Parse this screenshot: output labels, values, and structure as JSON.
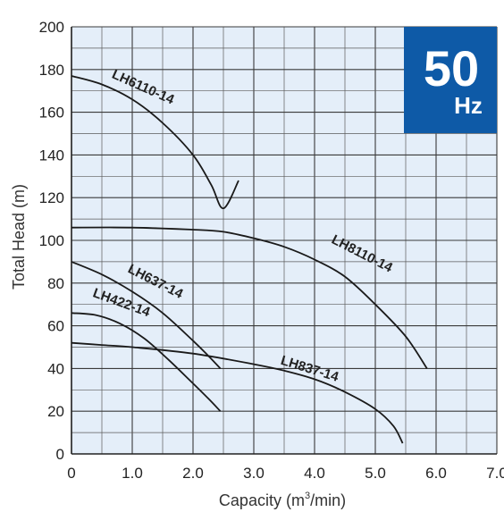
{
  "chart_data": {
    "type": "line",
    "ylabel": "Total Head (m)",
    "xlabel_prefix": "Capacity (m",
    "xlabel_sup": "3",
    "xlabel_suffix": "/min)",
    "xlim": [
      0,
      7
    ],
    "ylim": [
      0,
      200
    ],
    "x_ticks": [
      "0",
      "1.0",
      "2.0",
      "3.0",
      "4.0",
      "5.0",
      "6.0",
      "7.0"
    ],
    "y_ticks": [
      "0",
      "20",
      "40",
      "60",
      "80",
      "100",
      "120",
      "140",
      "160",
      "180",
      "200"
    ],
    "grid": true,
    "badge": {
      "big": "50",
      "small": "Hz",
      "color": "#0e5aa7"
    },
    "background_color": "#e4eef9",
    "series": [
      {
        "name": "LH6110-14",
        "x": [
          0,
          0.5,
          1.0,
          1.5,
          2.0,
          2.3,
          2.5,
          2.75
        ],
        "y": [
          177,
          173,
          166,
          155,
          140,
          126,
          115,
          128
        ]
      },
      {
        "name": "LH8110-14",
        "x": [
          0,
          1.0,
          2.0,
          2.5,
          3.0,
          3.5,
          4.0,
          4.5,
          5.0,
          5.5,
          5.85
        ],
        "y": [
          106,
          106,
          105,
          104,
          101,
          97,
          91,
          83,
          70,
          55,
          40
        ]
      },
      {
        "name": "LH637-14",
        "x": [
          0,
          0.5,
          1.0,
          1.5,
          2.0,
          2.25,
          2.45
        ],
        "y": [
          90,
          84,
          76,
          66,
          53,
          46,
          40
        ]
      },
      {
        "name": "LH422-14",
        "x": [
          0,
          0.4,
          0.8,
          1.2,
          1.6,
          2.0,
          2.25,
          2.45
        ],
        "y": [
          66,
          65,
          61,
          54,
          44,
          33,
          26,
          20
        ]
      },
      {
        "name": "LH837-14",
        "x": [
          0,
          0.5,
          1.0,
          2.0,
          3.0,
          3.5,
          4.0,
          4.5,
          5.0,
          5.3,
          5.45
        ],
        "y": [
          52,
          51,
          50,
          47,
          42,
          39,
          35,
          29,
          21,
          13,
          5
        ]
      }
    ]
  }
}
